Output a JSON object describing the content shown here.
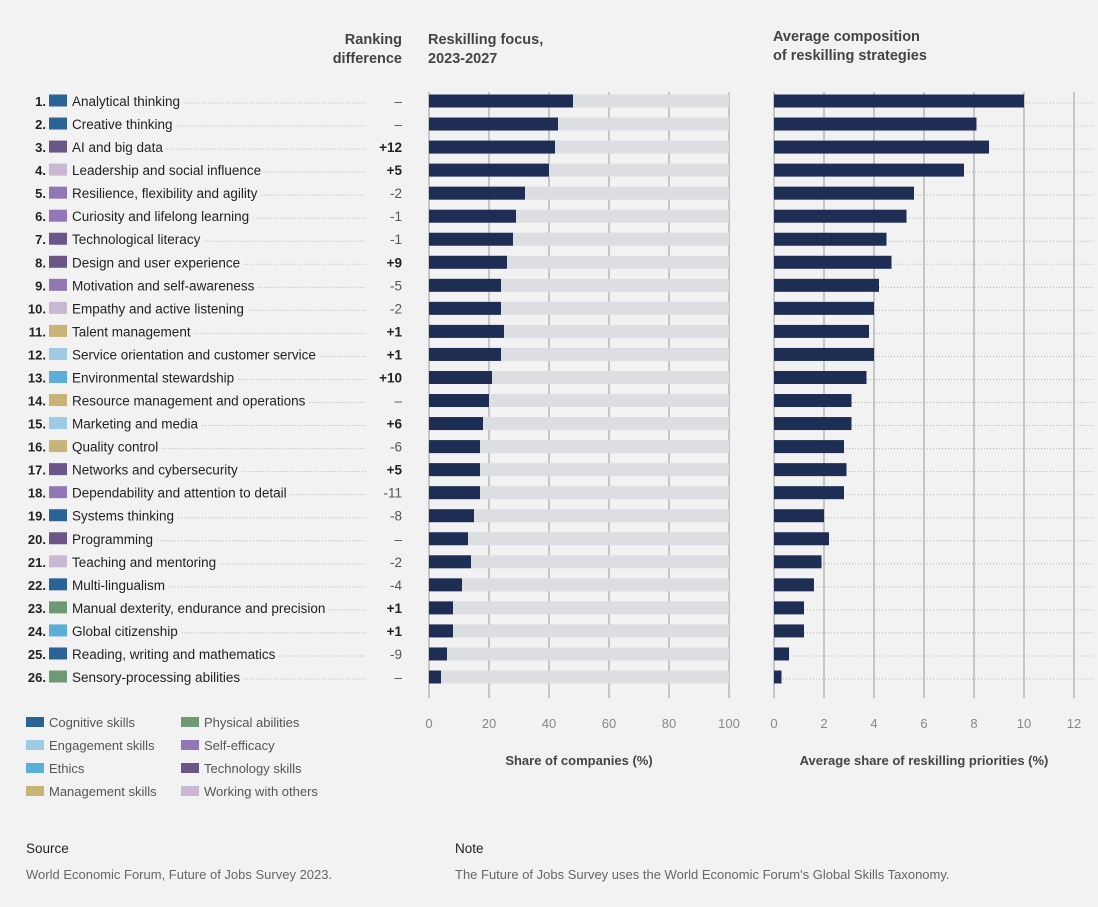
{
  "headers": {
    "ranking": [
      "Ranking",
      "difference"
    ],
    "reskilling_focus": [
      "Reskilling focus,",
      "2023-2027"
    ],
    "composition": [
      "Average composition",
      "of reskilling strategies"
    ]
  },
  "axis_labels": {
    "left": "Share of companies (%)",
    "right": "Average share of reskilling priorities (%)"
  },
  "legend": [
    {
      "label": "Cognitive skills",
      "color": "#2a6496"
    },
    {
      "label": "Engagement skills",
      "color": "#9ccbe3"
    },
    {
      "label": "Ethics",
      "color": "#5aaed8"
    },
    {
      "label": "Management skills",
      "color": "#c8b477"
    },
    {
      "label": "Physical abilities",
      "color": "#6e9a73"
    },
    {
      "label": "Self-efficacy",
      "color": "#9277b5"
    },
    {
      "label": "Technology skills",
      "color": "#6b5688"
    },
    {
      "label": "Working with others",
      "color": "#c9b8d4"
    }
  ],
  "footer": {
    "source_title": "Source",
    "source_text": "World Economic Forum, Future of Jobs Survey 2023.",
    "note_title": "Note",
    "note_text": "The Future of Jobs Survey uses the World Economic Forum's Global Skills Taxonomy."
  },
  "chart_data": [
    {
      "type": "bar",
      "orientation": "horizontal",
      "title": "Reskilling focus, 2023-2027",
      "xlabel": "Share of companies (%)",
      "xlim": [
        0,
        100
      ],
      "xticks": [
        0,
        20,
        40,
        60,
        80,
        100
      ],
      "grid": true,
      "categories": [
        "Analytical thinking",
        "Creative thinking",
        "AI and big data",
        "Leadership and social influence",
        "Resilience, flexibility and agility",
        "Curiosity and lifelong learning",
        "Technological literacy",
        "Design and user experience",
        "Motivation and self-awareness",
        "Empathy and active listening",
        "Talent management",
        "Service orientation and customer service",
        "Environmental stewardship",
        "Resource management and operations",
        "Marketing and media",
        "Quality control",
        "Networks and cybersecurity",
        "Dependability and attention to detail",
        "Systems thinking",
        "Programming",
        "Teaching and mentoring",
        "Multi-lingualism",
        "Manual dexterity, endurance and precision",
        "Global citizenship",
        "Reading, writing and mathematics",
        "Sensory-processing abilities"
      ],
      "ranks": [
        "1.",
        "2.",
        "3.",
        "4.",
        "5.",
        "6.",
        "7.",
        "8.",
        "9.",
        "10.",
        "11.",
        "12.",
        "13.",
        "14.",
        "15.",
        "16.",
        "17.",
        "18.",
        "19.",
        "20.",
        "21.",
        "22.",
        "23.",
        "24.",
        "25.",
        "26."
      ],
      "skill_groups": [
        "Cognitive skills",
        "Cognitive skills",
        "Technology skills",
        "Working with others",
        "Self-efficacy",
        "Self-efficacy",
        "Technology skills",
        "Technology skills",
        "Self-efficacy",
        "Working with others",
        "Management skills",
        "Engagement skills",
        "Ethics",
        "Management skills",
        "Engagement skills",
        "Management skills",
        "Technology skills",
        "Self-efficacy",
        "Cognitive skills",
        "Technology skills",
        "Working with others",
        "Cognitive skills",
        "Physical abilities",
        "Ethics",
        "Cognitive skills",
        "Physical abilities"
      ],
      "ranking_difference": [
        "–",
        "–",
        "+12",
        "+5",
        "-2",
        "-1",
        "-1",
        "+9",
        "-5",
        "-2",
        "+1",
        "+1",
        "+10",
        "–",
        "+6",
        "-6",
        "+5",
        "-11",
        "-8",
        "–",
        "-2",
        "-4",
        "+1",
        "+1",
        "-9",
        "–"
      ],
      "values": [
        48,
        43,
        42,
        40,
        32,
        29,
        28,
        26,
        24,
        24,
        25,
        24,
        21,
        20,
        18,
        17,
        17,
        17,
        15,
        13,
        14,
        11,
        8,
        8,
        6,
        4
      ]
    },
    {
      "type": "bar",
      "orientation": "horizontal",
      "title": "Average composition of reskilling strategies",
      "xlabel": "Average share of reskilling priorities (%)",
      "xlim": [
        0,
        12
      ],
      "xticks": [
        0,
        2,
        4,
        6,
        8,
        10,
        12
      ],
      "grid": true,
      "values": [
        10.0,
        8.1,
        8.6,
        7.6,
        5.6,
        5.3,
        4.5,
        4.7,
        4.2,
        4.0,
        3.8,
        4.0,
        3.7,
        3.1,
        3.1,
        2.8,
        2.9,
        2.8,
        2.0,
        2.2,
        1.9,
        1.6,
        1.2,
        1.2,
        0.6,
        0.3
      ]
    }
  ]
}
